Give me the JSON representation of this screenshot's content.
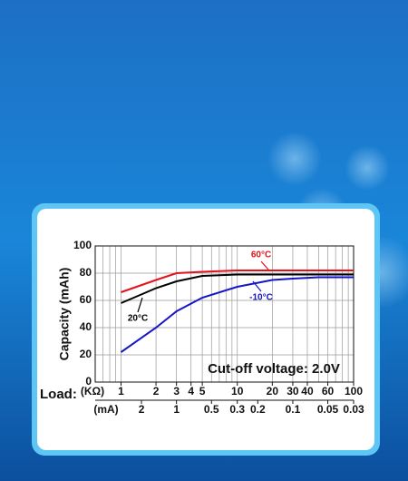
{
  "chart_data": {
    "type": "line",
    "y_label": "Capacity (mAh)",
    "x_label": "Load:",
    "x_unit": "(KΩ)",
    "x2_unit": "(mA)",
    "annotation": "Cut-off voltage: 2.0V",
    "x": [
      1,
      2,
      3,
      5,
      10,
      20,
      30,
      50,
      100
    ],
    "series": [
      {
        "name": "60°C",
        "color": "#e3121b",
        "values": [
          66,
          75,
          80,
          81,
          82,
          82,
          82,
          82,
          82
        ]
      },
      {
        "name": "20°C",
        "color": "#000000",
        "values": [
          58,
          69,
          74,
          78,
          79,
          79,
          79,
          79,
          79
        ]
      },
      {
        "name": "-10°C",
        "color": "#1515c8",
        "values": [
          22,
          40,
          52,
          62,
          70,
          75,
          76,
          77,
          77
        ]
      }
    ],
    "xlim": [
      0.6,
      100
    ],
    "xscale": "log",
    "xticks": [
      1,
      2,
      3,
      4,
      5,
      10,
      20,
      30,
      40,
      60,
      100
    ],
    "x2lim": [
      5,
      0.03
    ],
    "x2scale": "log",
    "x2ticks": [
      2,
      1,
      0.5,
      0.3,
      0.2,
      0.1,
      0.05,
      0.03
    ],
    "ylim": [
      0,
      100
    ],
    "yticks": [
      0,
      20,
      40,
      60,
      80,
      100
    ],
    "grid": true
  }
}
